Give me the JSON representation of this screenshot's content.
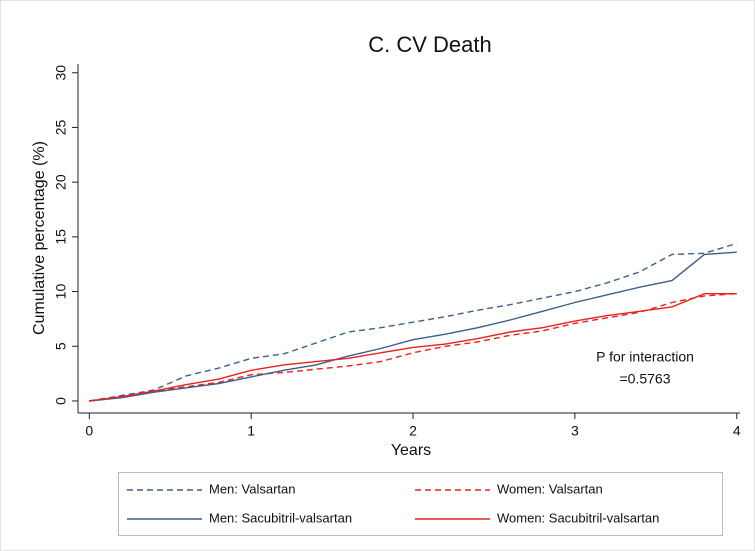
{
  "chart_data": {
    "type": "line",
    "title": "C. CV Death",
    "x_label": "Years",
    "y_label": "Cumulative percentage (%)",
    "x": [
      0,
      0.2,
      0.4,
      0.6,
      0.8,
      1.0,
      1.2,
      1.4,
      1.6,
      1.8,
      2.0,
      2.2,
      2.4,
      2.6,
      2.8,
      3.0,
      3.2,
      3.4,
      3.6,
      3.8,
      4.0
    ],
    "series": [
      {
        "name": "Men: Valsartan",
        "color": "#3d5f88",
        "dashed": true,
        "values": [
          0,
          0.5,
          1.0,
          2.3,
          3.0,
          3.9,
          4.3,
          5.3,
          6.3,
          6.7,
          7.2,
          7.7,
          8.3,
          8.8,
          9.4,
          10.0,
          10.8,
          11.8,
          13.4,
          13.5,
          14.4
        ]
      },
      {
        "name": "Women: Valsartan",
        "color": "#e8231f",
        "dashed": true,
        "values": [
          0,
          0.4,
          0.9,
          1.3,
          1.7,
          2.4,
          2.6,
          2.9,
          3.2,
          3.6,
          4.4,
          5.0,
          5.4,
          6.0,
          6.4,
          7.1,
          7.6,
          8.1,
          9.0,
          9.6,
          9.8
        ]
      },
      {
        "name": "Men: Sacubitril-valsartan",
        "color": "#3d5f88",
        "dashed": false,
        "values": [
          0,
          0.3,
          0.8,
          1.2,
          1.6,
          2.2,
          2.8,
          3.3,
          4.1,
          4.8,
          5.6,
          6.1,
          6.7,
          7.4,
          8.2,
          9.0,
          9.7,
          10.4,
          11.0,
          13.4,
          13.6
        ]
      },
      {
        "name": "Women: Sacubitril-valsartan",
        "color": "#e8231f",
        "dashed": false,
        "values": [
          0,
          0.4,
          0.9,
          1.5,
          2.0,
          2.8,
          3.3,
          3.6,
          3.9,
          4.4,
          4.9,
          5.2,
          5.7,
          6.3,
          6.7,
          7.3,
          7.8,
          8.2,
          8.6,
          9.8,
          9.8
        ]
      }
    ],
    "xlim": [
      -0.07,
      4.02
    ],
    "xticks": [
      0,
      1,
      2,
      3,
      4
    ],
    "ylim": [
      -1.1,
      30.8
    ],
    "yticks": [
      0,
      5,
      10,
      15,
      20,
      25,
      30
    ],
    "grid": false,
    "annotations": [
      "P for interaction",
      "=0.5763"
    ]
  }
}
